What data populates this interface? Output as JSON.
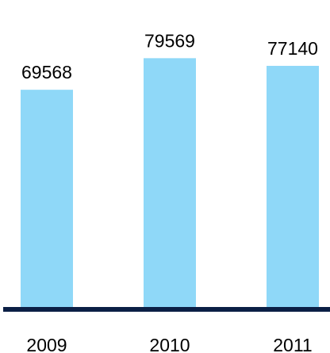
{
  "chart_data": {
    "type": "bar",
    "title": "",
    "xlabel": "",
    "ylabel": "",
    "categories": [
      "2009",
      "2010",
      "2011"
    ],
    "values": [
      69568,
      79569,
      77140
    ],
    "data_labels": [
      "69568",
      "79569",
      "77140"
    ],
    "ylim": [
      0,
      98000
    ],
    "grid": false,
    "legend": "none",
    "colors": {
      "bar": "#8fd8f8",
      "axis": "#0b1f45",
      "text": "#000000"
    }
  }
}
